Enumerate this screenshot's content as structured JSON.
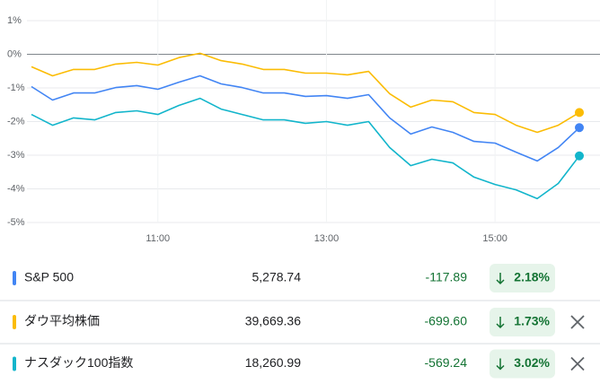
{
  "chart_data": {
    "type": "line",
    "x": [
      "09:30",
      "09:45",
      "10:00",
      "10:15",
      "10:30",
      "10:45",
      "11:00",
      "11:15",
      "11:30",
      "11:45",
      "12:00",
      "12:15",
      "12:30",
      "12:45",
      "13:00",
      "13:15",
      "13:30",
      "13:45",
      "14:00",
      "14:15",
      "14:30",
      "14:45",
      "15:00",
      "15:15",
      "15:30",
      "15:45",
      "16:00"
    ],
    "xlim": [
      "09:30",
      "16:00"
    ],
    "xticks": [
      "11:00",
      "13:00",
      "15:00"
    ],
    "ylim": [
      -5,
      1
    ],
    "yticks": [
      {
        "value": 1,
        "label": "1%"
      },
      {
        "value": 0,
        "label": "0%"
      },
      {
        "value": -1,
        "label": "-1%"
      },
      {
        "value": -2,
        "label": "-2%"
      },
      {
        "value": -3,
        "label": "-3%"
      },
      {
        "value": -4,
        "label": "-4%"
      },
      {
        "value": -5,
        "label": "-5%"
      }
    ],
    "grid": true,
    "series": [
      {
        "name": "S&P 500",
        "color": "#4285f4",
        "values": [
          -0.96,
          -1.36,
          -1.15,
          -1.15,
          -0.99,
          -0.93,
          -1.04,
          -0.83,
          -0.64,
          -0.88,
          -0.99,
          -1.15,
          -1.15,
          -1.25,
          -1.23,
          -1.31,
          -1.2,
          -1.89,
          -2.37,
          -2.16,
          -2.32,
          -2.59,
          -2.64,
          -2.91,
          -3.17,
          -2.77,
          -2.18
        ]
      },
      {
        "name": "ダウ平均株価",
        "color": "#fbbc04",
        "values": [
          -0.37,
          -0.64,
          -0.45,
          -0.45,
          -0.29,
          -0.24,
          -0.32,
          -0.1,
          0.03,
          -0.19,
          -0.29,
          -0.45,
          -0.45,
          -0.56,
          -0.56,
          -0.61,
          -0.51,
          -1.17,
          -1.57,
          -1.36,
          -1.41,
          -1.73,
          -1.79,
          -2.11,
          -2.32,
          -2.11,
          -1.73
        ]
      },
      {
        "name": "ナスダック100指数",
        "color": "#12b5cb",
        "values": [
          -1.79,
          -2.11,
          -1.89,
          -1.95,
          -1.73,
          -1.68,
          -1.79,
          -1.52,
          -1.31,
          -1.63,
          -1.79,
          -1.95,
          -1.95,
          -2.05,
          -2.0,
          -2.11,
          -2.0,
          -2.77,
          -3.31,
          -3.12,
          -3.23,
          -3.65,
          -3.87,
          -4.03,
          -4.29,
          -3.84,
          -3.02
        ]
      }
    ]
  },
  "table": {
    "rows": [
      {
        "price": "5,278.74",
        "change": "-117.89",
        "percent": "2.18%"
      },
      {
        "price": "39,669.36",
        "change": "-699.60",
        "percent": "1.73%"
      },
      {
        "price": "18,260.99",
        "change": "-569.24",
        "percent": "3.02%"
      }
    ]
  }
}
